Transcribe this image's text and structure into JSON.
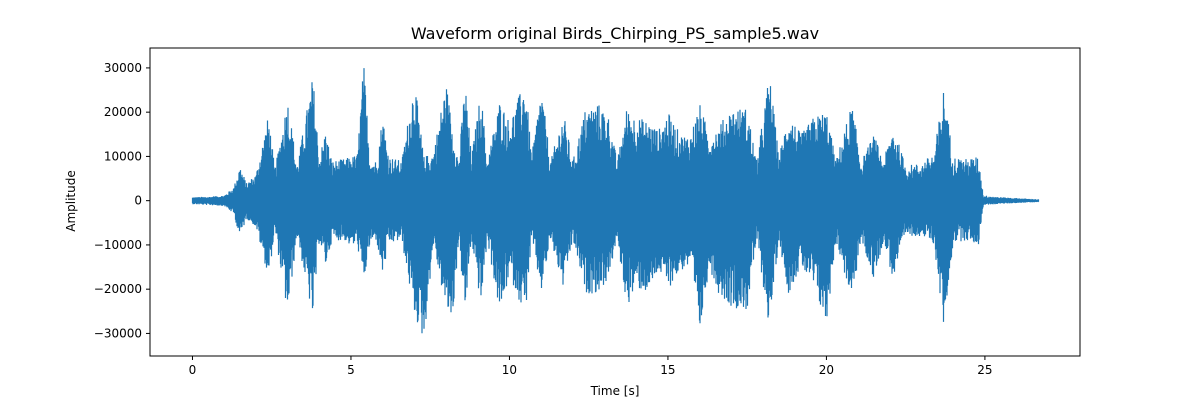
{
  "chart_data": {
    "type": "line",
    "title": "Waveform original Birds_Chirping_PS_sample5.wav",
    "xlabel": "Time [s]",
    "ylabel": "Amplitude",
    "xlim": [
      -1.34,
      28.0
    ],
    "ylim": [
      -35100,
      34500
    ],
    "xticks": [
      0,
      5,
      10,
      15,
      20,
      25
    ],
    "xtick_labels": [
      "0",
      "5",
      "10",
      "15",
      "20",
      "25"
    ],
    "yticks": [
      -30000,
      -20000,
      -10000,
      0,
      10000,
      20000,
      30000
    ],
    "ytick_labels": [
      "−30000",
      "−20000",
      "−10000",
      "0",
      "10000",
      "20000",
      "30000"
    ],
    "grid": false,
    "series": [
      {
        "color": "#1f77b4",
        "duration": 26.7,
        "envelope": [
          [
            0.0,
            800,
            -800
          ],
          [
            0.5,
            900,
            -1000
          ],
          [
            1.0,
            1200,
            -1200
          ],
          [
            1.3,
            3000,
            -3000
          ],
          [
            1.5,
            8000,
            -8500
          ],
          [
            1.7,
            4000,
            -4000
          ],
          [
            2.0,
            6000,
            -6000
          ],
          [
            2.4,
            19500,
            -17500
          ],
          [
            2.6,
            7000,
            -7000
          ],
          [
            3.0,
            23500,
            -26000
          ],
          [
            3.3,
            8000,
            -8000
          ],
          [
            3.8,
            28500,
            -27000
          ],
          [
            4.0,
            10000,
            -9000
          ],
          [
            4.2,
            16000,
            -15000
          ],
          [
            4.4,
            9000,
            -9000
          ],
          [
            4.8,
            9500,
            -9000
          ],
          [
            5.0,
            10000,
            -10500
          ],
          [
            5.2,
            10500,
            -10000
          ],
          [
            5.4,
            31500,
            -19000
          ],
          [
            5.6,
            10000,
            -10000
          ],
          [
            5.8,
            9000,
            -9000
          ],
          [
            6.0,
            19500,
            -17000
          ],
          [
            6.2,
            10000,
            -10000
          ],
          [
            6.6,
            9000,
            -9000
          ],
          [
            7.0,
            27500,
            -26000
          ],
          [
            7.3,
            10000,
            -32000
          ],
          [
            7.6,
            11000,
            -10000
          ],
          [
            8.0,
            27000,
            -25000
          ],
          [
            8.2,
            17000,
            -27500
          ],
          [
            8.4,
            9000,
            -9000
          ],
          [
            8.6,
            27500,
            -26000
          ],
          [
            8.8,
            10000,
            -9000
          ],
          [
            9.1,
            25000,
            -24000
          ],
          [
            9.3,
            9000,
            -9000
          ],
          [
            9.7,
            23000,
            -26000
          ],
          [
            10.0,
            18000,
            -17000
          ],
          [
            10.5,
            27500,
            -26000
          ],
          [
            10.7,
            10000,
            -9000
          ],
          [
            11.0,
            26000,
            -21000
          ],
          [
            11.3,
            9000,
            -9000
          ],
          [
            11.7,
            20000,
            -20000
          ],
          [
            12.0,
            9000,
            -9000
          ],
          [
            12.4,
            21000,
            -21000
          ],
          [
            12.8,
            22000,
            -21000
          ],
          [
            13.1,
            20000,
            -18000
          ],
          [
            13.4,
            9000,
            -9000
          ],
          [
            13.7,
            21000,
            -24000
          ],
          [
            14.0,
            19000,
            -20000
          ],
          [
            14.4,
            18000,
            -21000
          ],
          [
            14.7,
            16000,
            -16000
          ],
          [
            15.0,
            20000,
            -20000
          ],
          [
            15.4,
            15000,
            -16000
          ],
          [
            15.7,
            15000,
            -15000
          ],
          [
            16.0,
            22000,
            -30500
          ],
          [
            16.3,
            15000,
            -15000
          ],
          [
            16.6,
            17000,
            -21000
          ],
          [
            17.0,
            21000,
            -24000
          ],
          [
            17.5,
            21000,
            -25000
          ],
          [
            17.8,
            9000,
            -9000
          ],
          [
            18.2,
            29000,
            -29000
          ],
          [
            18.5,
            10000,
            -9000
          ],
          [
            18.8,
            20000,
            -21000
          ],
          [
            19.2,
            15000,
            -15000
          ],
          [
            19.6,
            19000,
            -20000
          ],
          [
            20.0,
            20500,
            -28500
          ],
          [
            20.3,
            9000,
            -9000
          ],
          [
            20.8,
            22000,
            -23000
          ],
          [
            21.1,
            9000,
            -9000
          ],
          [
            21.5,
            15000,
            -18000
          ],
          [
            21.8,
            9000,
            -9000
          ],
          [
            22.1,
            17000,
            -18000
          ],
          [
            22.5,
            8000,
            -8000
          ],
          [
            23.0,
            8500,
            -8000
          ],
          [
            23.4,
            11000,
            -10000
          ],
          [
            23.7,
            25500,
            -29000
          ],
          [
            24.0,
            10000,
            -9500
          ],
          [
            24.4,
            9500,
            -9000
          ],
          [
            24.8,
            10000,
            -10000
          ],
          [
            24.95,
            1200,
            -1000
          ],
          [
            25.5,
            800,
            -700
          ],
          [
            26.7,
            300,
            -300
          ]
        ]
      }
    ]
  }
}
